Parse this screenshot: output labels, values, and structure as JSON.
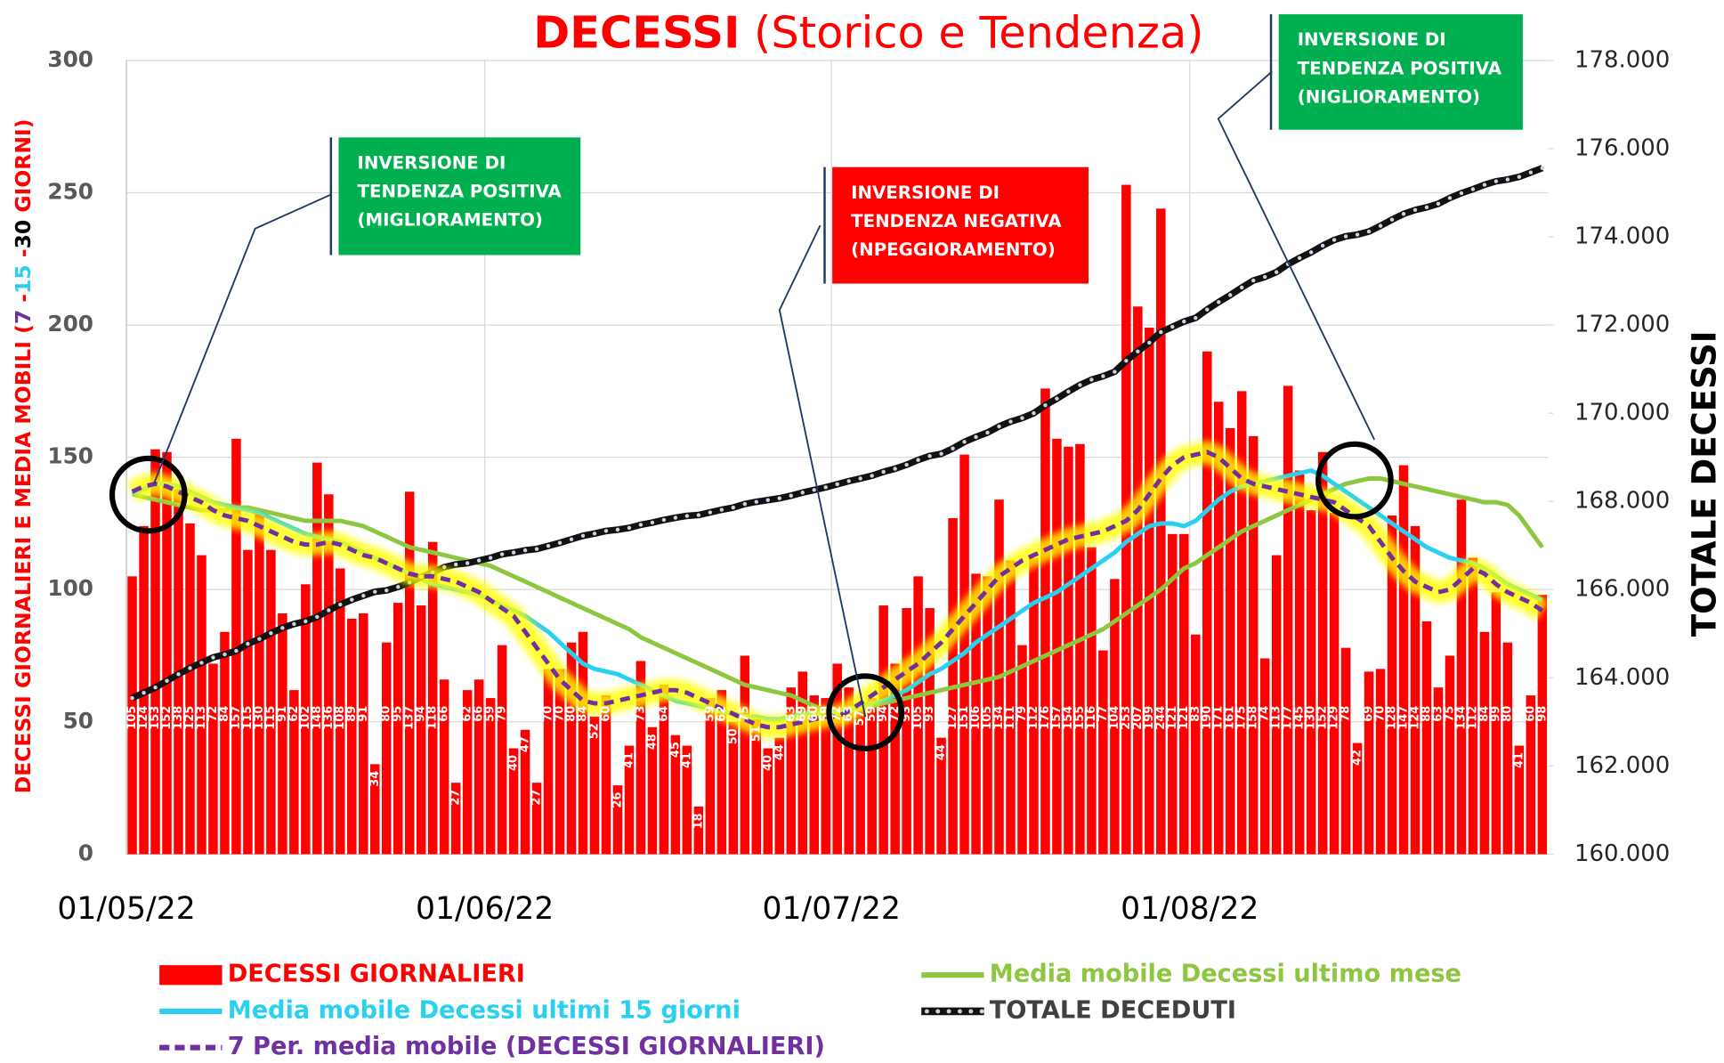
{
  "chart_data": {
    "type": "bar",
    "title": [
      "DECESSI",
      "(Storico e Tendenza)"
    ],
    "y_label": [
      {
        "text": "DECESSI GIORNALIERI E MEDIA MOBILI  (",
        "color": "#ff0000"
      },
      {
        "text": "7",
        "color": "#7030a0"
      },
      {
        "text": " -",
        "color": "#ff0000"
      },
      {
        "text": "15",
        "color": "#29d0f0"
      },
      {
        "text": " -",
        "color": "#ff0000"
      },
      {
        "text": "30",
        "color": "#000000"
      },
      {
        "text": " GIORNI)",
        "color": "#ff0000"
      }
    ],
    "y2_label": "TOTALE DECESSI",
    "categories": [
      "01/05/22",
      null,
      null,
      null,
      null,
      null,
      null,
      null,
      null,
      null,
      null,
      null,
      null,
      null,
      null,
      null,
      null,
      null,
      null,
      null,
      null,
      null,
      null,
      null,
      null,
      null,
      null,
      null,
      null,
      null,
      null,
      "01/06/22",
      null,
      null,
      null,
      null,
      null,
      null,
      null,
      null,
      null,
      null,
      null,
      null,
      null,
      null,
      null,
      null,
      null,
      null,
      null,
      null,
      null,
      null,
      null,
      null,
      null,
      null,
      null,
      null,
      null,
      "01/07/22",
      null,
      null,
      null,
      null,
      null,
      null,
      null,
      null,
      null,
      null,
      null,
      null,
      null,
      null,
      null,
      null,
      null,
      null,
      null,
      null,
      null,
      null,
      null,
      null,
      null,
      null,
      null,
      null,
      null,
      null,
      "01/08/22",
      null,
      null,
      null,
      null,
      null,
      null,
      null,
      null,
      null,
      null,
      null,
      null,
      null,
      null,
      null,
      null,
      null,
      null,
      null,
      null,
      null,
      null,
      null,
      null,
      null,
      null,
      null,
      null,
      null,
      null
    ],
    "series": [
      {
        "name": "DECESSI GIORNALIERI",
        "type": "bar",
        "color": "#ff0000",
        "values": [
          105,
          124,
          153,
          152,
          138,
          125,
          113,
          72,
          84,
          157,
          115,
          130,
          115,
          91,
          62,
          102,
          148,
          136,
          108,
          89,
          91,
          34,
          80,
          95,
          137,
          94,
          118,
          66,
          27,
          62,
          66,
          59,
          79,
          40,
          47,
          27,
          70,
          70,
          80,
          84,
          52,
          60,
          26,
          41,
          73,
          48,
          64,
          45,
          41,
          18,
          59,
          62,
          50,
          75,
          51,
          40,
          44,
          63,
          69,
          60,
          59,
          72,
          63,
          57,
          59,
          94,
          72,
          93,
          105,
          93,
          44,
          127,
          151,
          106,
          105,
          134,
          111,
          79,
          112,
          176,
          157,
          154,
          155,
          116,
          77,
          104,
          253,
          207,
          199,
          244,
          121,
          121,
          83,
          190,
          171,
          161,
          175,
          158,
          74,
          113,
          177,
          145,
          130,
          152,
          129,
          78,
          42,
          69,
          70,
          128,
          147,
          124,
          88,
          63,
          75,
          134,
          112,
          84,
          99,
          80,
          41,
          60,
          98
        ]
      },
      {
        "name": "Media mobile Decessi ultimo mese",
        "type": "line",
        "color": "#8dc63f",
        "values": [
          136,
          135,
          134,
          133,
          132,
          131,
          130,
          130,
          130,
          131,
          131,
          130,
          129,
          128,
          127,
          126,
          126,
          126,
          126,
          125,
          124,
          122,
          120,
          118,
          116,
          115,
          114,
          113,
          112,
          111,
          110,
          109,
          107,
          105,
          103,
          101,
          99,
          97,
          95,
          93,
          91,
          89,
          87,
          85,
          82,
          80,
          78,
          76,
          74,
          72,
          70,
          68,
          66,
          64,
          63,
          62,
          61,
          60,
          58,
          56,
          54,
          53,
          54,
          55,
          56,
          57,
          58,
          59,
          60,
          61,
          62,
          63,
          64,
          65,
          66,
          67,
          69,
          71,
          73,
          75,
          77,
          79,
          81,
          83,
          85,
          88,
          91,
          94,
          97,
          100,
          104,
          108,
          110,
          113,
          116,
          119,
          122,
          124,
          126,
          128,
          130,
          132,
          134,
          136,
          138,
          140,
          141,
          142,
          142,
          141,
          140,
          139,
          138,
          137,
          136,
          135,
          134,
          133,
          133,
          132,
          128,
          122,
          116
        ]
      },
      {
        "name": "Media mobile Decessi ultimi 15 giorni",
        "type": "line",
        "color": "#29d0f0",
        "values": [
          136,
          138,
          140,
          140,
          139,
          137,
          135,
          133,
          132,
          131,
          130,
          129,
          127,
          125,
          123,
          121,
          120,
          119,
          118,
          116,
          114,
          112,
          110,
          108,
          106,
          104,
          102,
          101,
          100,
          99,
          98,
          96,
          94,
          92,
          90,
          87,
          84,
          80,
          76,
          72,
          70,
          69,
          68,
          66,
          64,
          62,
          60,
          58,
          57,
          56,
          55,
          54,
          53,
          52,
          52,
          51,
          51,
          52,
          53,
          53,
          54,
          54,
          55,
          56,
          57,
          58,
          60,
          62,
          65,
          68,
          70,
          73,
          76,
          80,
          83,
          86,
          89,
          92,
          95,
          97,
          99,
          102,
          105,
          108,
          111,
          114,
          118,
          121,
          124,
          125,
          125,
          124,
          126,
          130,
          134,
          137,
          139,
          140,
          141,
          142,
          143,
          144,
          145,
          143,
          140,
          137,
          134,
          131,
          128,
          125,
          122,
          119,
          116,
          114,
          112,
          111,
          110,
          108,
          105,
          102,
          100,
          98,
          96
        ]
      },
      {
        "name": "TOTALE DECEDUTI",
        "type": "line",
        "axis": "y2",
        "color": "#111111",
        "markers": true,
        "values": [
          163540,
          163660,
          163780,
          163930,
          164080,
          164220,
          164340,
          164460,
          164530,
          164610,
          164770,
          164880,
          165010,
          165130,
          165220,
          165280,
          165380,
          165530,
          165660,
          165770,
          165860,
          165950,
          165980,
          166060,
          166160,
          166290,
          166390,
          166510,
          166570,
          166600,
          166660,
          166720,
          166800,
          166840,
          166890,
          166920,
          166990,
          167060,
          167140,
          167220,
          167270,
          167330,
          167360,
          167400,
          167470,
          167520,
          167580,
          167630,
          167670,
          167690,
          167750,
          167810,
          167860,
          167940,
          167990,
          168030,
          168070,
          168130,
          168200,
          168260,
          168320,
          168390,
          168460,
          168520,
          168580,
          168670,
          168740,
          168830,
          168940,
          169030,
          169080,
          169200,
          169350,
          169460,
          169560,
          169700,
          169810,
          169890,
          170000,
          170180,
          170330,
          170490,
          170640,
          170760,
          170840,
          170940,
          171190,
          171400,
          171600,
          171840,
          171960,
          172080,
          172160,
          172350,
          172520,
          172680,
          172850,
          173010,
          173090,
          173200,
          173380,
          173520,
          173650,
          173800,
          173930,
          174010,
          174050,
          174120,
          174250,
          174390,
          174520,
          174610,
          174670,
          174750,
          174880,
          174990,
          175080,
          175180,
          175260,
          175300,
          175360,
          175460,
          175560
        ]
      },
      {
        "name": "7 Per. media mobile (DECESSI GIORNALIERI)",
        "type": "line",
        "color": "#7030a0",
        "dashed": true,
        "glow": "#ffff00",
        "values": [
          137,
          139,
          140,
          139,
          137,
          135,
          133,
          130,
          128,
          127,
          126,
          124,
          122,
          120,
          118,
          117,
          117,
          118,
          117,
          115,
          113,
          112,
          110,
          108,
          106,
          105,
          105,
          104,
          103,
          101,
          99,
          96,
          93,
          90,
          84,
          78,
          72,
          66,
          62,
          58,
          57,
          57,
          58,
          59,
          60,
          61,
          62,
          62,
          61,
          59,
          57,
          55,
          53,
          51,
          49,
          48,
          48,
          49,
          50,
          51,
          52,
          52,
          54,
          57,
          60,
          63,
          66,
          69,
          72,
          76,
          80,
          85,
          90,
          95,
          100,
          105,
          108,
          111,
          113,
          115,
          117,
          119,
          120,
          121,
          122,
          124,
          126,
          130,
          136,
          142,
          147,
          150,
          151,
          152,
          150,
          146,
          142,
          140,
          139,
          138,
          137,
          136,
          135,
          134,
          133,
          130,
          127,
          124,
          118,
          112,
          107,
          103,
          101,
          99,
          100,
          104,
          108,
          106,
          102,
          99,
          97,
          95,
          92
        ]
      }
    ],
    "ylim": [
      0,
      300
    ],
    "yticks": [
      0,
      50,
      100,
      150,
      200,
      250,
      300
    ],
    "y2lim": [
      160000,
      178000
    ],
    "y2ticks": [
      {
        "value": 160000,
        "label": "160.000"
      },
      {
        "value": 162000,
        "label": "162.000"
      },
      {
        "value": 164000,
        "label": "164.000"
      },
      {
        "value": 166000,
        "label": "166.000"
      },
      {
        "value": 168000,
        "label": "168.000"
      },
      {
        "value": 170000,
        "label": "170.000"
      },
      {
        "value": 172000,
        "label": "172.000"
      },
      {
        "value": 174000,
        "label": "174.000"
      },
      {
        "value": 176000,
        "label": "176.000"
      },
      {
        "value": 178000,
        "label": "178.000"
      }
    ],
    "grid": true,
    "annotations": [
      {
        "text": [
          "INVERSIONE DI",
          "TENDENZA POSITIVA",
          "(MIGLIORAMENTO)"
        ],
        "color": "#00b050"
      },
      {
        "text": [
          "INVERSIONE DI",
          "TENDENZA NEGATIVA",
          "(NPEGGIORAMENTO)"
        ],
        "color": "#ff0000"
      },
      {
        "text": [
          "INVERSIONE DI",
          "TENDENZA POSITIVA",
          "(NIGLIORAMENTO)"
        ],
        "color": "#00b050"
      }
    ]
  }
}
